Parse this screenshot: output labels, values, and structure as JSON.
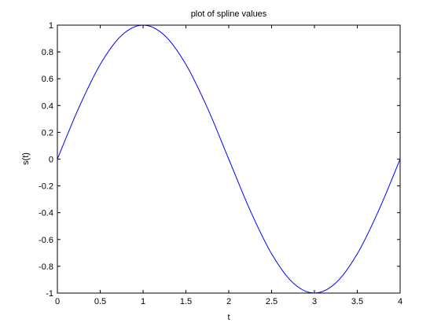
{
  "chart_data": {
    "type": "line",
    "title": "plot of spline values",
    "xlabel": "t",
    "ylabel": "s(t)",
    "xlim": [
      0,
      4
    ],
    "ylim": [
      -1,
      1
    ],
    "xticks": [
      0,
      0.5,
      1,
      1.5,
      2,
      2.5,
      3,
      3.5,
      4
    ],
    "xtick_labels": [
      "0",
      "0.5",
      "1",
      "1.5",
      "2",
      "2.5",
      "3",
      "3.5",
      "4"
    ],
    "yticks": [
      -1,
      -0.8,
      -0.6,
      -0.4,
      -0.2,
      0,
      0.2,
      0.4,
      0.6,
      0.8,
      1
    ],
    "ytick_labels": [
      "-1",
      "-0.8",
      "-0.6",
      "-0.4",
      "-0.2",
      "0",
      "0.2",
      "0.4",
      "0.6",
      "0.8",
      "1"
    ],
    "grid": false,
    "line_color": "#0000ff",
    "series": [
      {
        "x": [
          0,
          0.25,
          0.5,
          0.75,
          1,
          1.25,
          1.5,
          1.75,
          2,
          2.25,
          2.5,
          2.75,
          3,
          3.25,
          3.5,
          3.75,
          4
        ],
        "values": [
          0,
          0.383,
          0.707,
          0.924,
          1,
          0.924,
          0.707,
          0.383,
          0,
          -0.383,
          -0.707,
          -0.924,
          -1,
          -0.924,
          -0.707,
          -0.383,
          0
        ]
      }
    ]
  }
}
